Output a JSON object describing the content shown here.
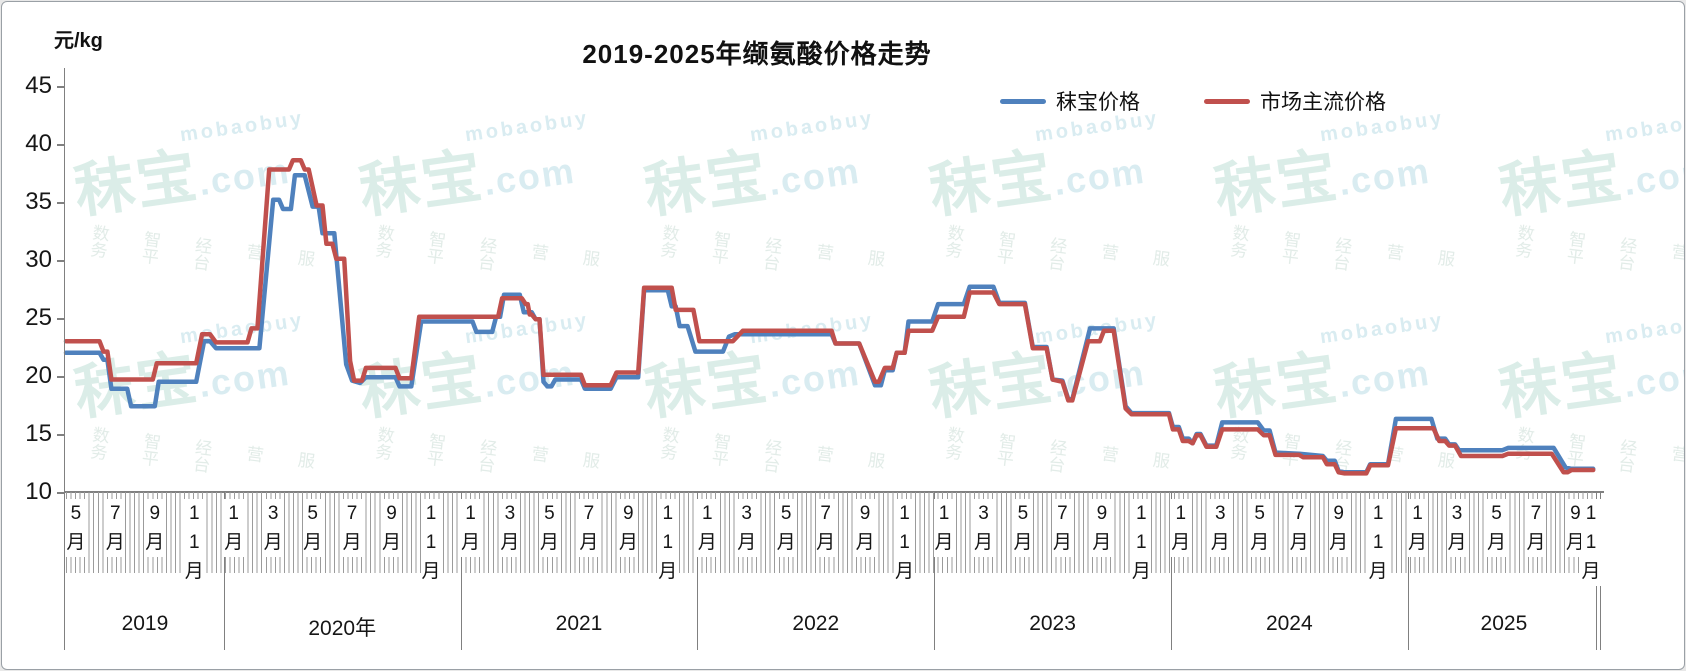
{
  "frame": {
    "title": "2019-2025年缬氨酸价格走势",
    "y_axis_title": "元/kg"
  },
  "legend": [
    {
      "label": "秣宝价格",
      "color": "#4F81BD"
    },
    {
      "label": "市场主流价格",
      "color": "#C0504D"
    }
  ],
  "watermark": {
    "latin": "mobaobuy",
    "brand": "秣宝",
    "domain": ".com",
    "slogan": "数智经营服务平台",
    "color": "#D5EBE4"
  },
  "chart_data": {
    "type": "line",
    "title": "2019-2025年缬氨酸价格走势",
    "ylabel": "元/kg",
    "ylim": [
      10,
      45
    ],
    "yticks": [
      45,
      40,
      35,
      30,
      25,
      20,
      15,
      10
    ],
    "grid": "off",
    "legend_position": "top-right",
    "x_unit": "months since 2019-05 (weekly step data)",
    "x_axis_years": [
      {
        "label": "2019",
        "start_month": 0,
        "months": [
          "5月",
          "7月",
          "9月",
          "11月"
        ]
      },
      {
        "label": "2020年",
        "start_month": 8,
        "months": [
          "1月",
          "3月",
          "5月",
          "7月",
          "9月",
          "11月"
        ]
      },
      {
        "label": "2021",
        "start_month": 20,
        "months": [
          "1月",
          "3月",
          "5月",
          "7月",
          "9月",
          "11月"
        ]
      },
      {
        "label": "2022",
        "start_month": 32,
        "months": [
          "1月",
          "3月",
          "5月",
          "7月",
          "9月",
          "11月"
        ]
      },
      {
        "label": "2023",
        "start_month": 44,
        "months": [
          "1月",
          "3月",
          "5月",
          "7月",
          "9月",
          "11月"
        ]
      },
      {
        "label": "2024",
        "start_month": 56,
        "months": [
          "1月",
          "3月",
          "5月",
          "7月",
          "9月",
          "11月"
        ]
      },
      {
        "label": "2025",
        "start_month": 68,
        "months": [
          "1月",
          "3月",
          "5月",
          "7月",
          "9月",
          "11月"
        ]
      }
    ],
    "series": [
      {
        "name": "秣宝价格",
        "color": "#4F81BD",
        "points": [
          [
            0,
            22
          ],
          [
            1.7,
            22
          ],
          [
            1.9,
            21.4
          ],
          [
            2.1,
            21.4
          ],
          [
            2.3,
            18.9
          ],
          [
            3.1,
            18.9
          ],
          [
            3.3,
            17.4
          ],
          [
            4.5,
            17.4
          ],
          [
            4.7,
            19.5
          ],
          [
            6.6,
            19.5
          ],
          [
            7,
            23
          ],
          [
            7.3,
            23
          ],
          [
            7.6,
            22.4
          ],
          [
            9.8,
            22.4
          ],
          [
            10.5,
            35.2
          ],
          [
            10.8,
            35.2
          ],
          [
            11,
            34.4
          ],
          [
            11.4,
            34.4
          ],
          [
            11.6,
            37.3
          ],
          [
            12.1,
            37.3
          ],
          [
            12.5,
            34.6
          ],
          [
            12.8,
            34.6
          ],
          [
            13,
            32.3
          ],
          [
            13.6,
            32.3
          ],
          [
            14.2,
            21
          ],
          [
            14.5,
            19.6
          ],
          [
            14.9,
            19.4
          ],
          [
            15.2,
            19.9
          ],
          [
            16.7,
            19.9
          ],
          [
            16.9,
            19.1
          ],
          [
            17.5,
            19.1
          ],
          [
            18,
            24.7
          ],
          [
            20.6,
            24.7
          ],
          [
            20.8,
            23.8
          ],
          [
            21.6,
            23.8
          ],
          [
            21.8,
            25.1
          ],
          [
            22,
            25.1
          ],
          [
            22.2,
            27
          ],
          [
            23,
            27
          ],
          [
            23.2,
            25.5
          ],
          [
            23.6,
            25.5
          ],
          [
            23.8,
            24.9
          ],
          [
            24,
            24.9
          ],
          [
            24.2,
            19.5
          ],
          [
            24.4,
            19.1
          ],
          [
            24.6,
            19.1
          ],
          [
            24.8,
            19.7
          ],
          [
            26.1,
            19.7
          ],
          [
            26.3,
            18.9
          ],
          [
            27.6,
            18.9
          ],
          [
            27.9,
            19.9
          ],
          [
            29,
            19.9
          ],
          [
            29.3,
            27.4
          ],
          [
            30.5,
            27.4
          ],
          [
            30.7,
            26
          ],
          [
            30.9,
            26
          ],
          [
            31.1,
            24.3
          ],
          [
            31.5,
            24.3
          ],
          [
            31.9,
            22.1
          ],
          [
            33.3,
            22.1
          ],
          [
            33.6,
            23.4
          ],
          [
            33.9,
            23.6
          ],
          [
            38.8,
            23.6
          ],
          [
            39,
            22.8
          ],
          [
            40.2,
            22.8
          ],
          [
            41,
            19.2
          ],
          [
            41.3,
            19.2
          ],
          [
            41.5,
            20.5
          ],
          [
            41.9,
            20.5
          ],
          [
            42.1,
            22
          ],
          [
            42.5,
            22
          ],
          [
            42.7,
            24.7
          ],
          [
            43.9,
            24.7
          ],
          [
            44.2,
            26.2
          ],
          [
            45.5,
            26.2
          ],
          [
            45.8,
            27.7
          ],
          [
            47,
            27.7
          ],
          [
            47.3,
            26.3
          ],
          [
            48.6,
            26.3
          ],
          [
            49,
            22.5
          ],
          [
            49.7,
            22.5
          ],
          [
            50,
            19.7
          ],
          [
            50.5,
            19.6
          ],
          [
            50.8,
            18
          ],
          [
            51,
            18
          ],
          [
            51.9,
            24.1
          ],
          [
            53.1,
            24.1
          ],
          [
            53.7,
            17.4
          ],
          [
            54,
            16.8
          ],
          [
            55.9,
            16.8
          ],
          [
            56.1,
            15.6
          ],
          [
            56.4,
            15.6
          ],
          [
            56.6,
            14.6
          ],
          [
            56.9,
            14.6
          ],
          [
            57.1,
            14.2
          ],
          [
            57.3,
            15
          ],
          [
            57.5,
            15
          ],
          [
            57.8,
            14
          ],
          [
            58.3,
            14
          ],
          [
            58.6,
            16
          ],
          [
            60.4,
            16
          ],
          [
            60.7,
            15.3
          ],
          [
            61,
            15.3
          ],
          [
            61.3,
            13.4
          ],
          [
            62.5,
            13.3
          ],
          [
            63.7,
            13.1
          ],
          [
            63.9,
            12.7
          ],
          [
            64.3,
            12.7
          ],
          [
            64.5,
            11.8
          ],
          [
            64.8,
            11.7
          ],
          [
            65.9,
            11.7
          ],
          [
            66.1,
            12.4
          ],
          [
            67,
            12.4
          ],
          [
            67.4,
            16.3
          ],
          [
            69.2,
            16.3
          ],
          [
            69.5,
            14.6
          ],
          [
            69.9,
            14.6
          ],
          [
            70.1,
            14.1
          ],
          [
            70.4,
            14.1
          ],
          [
            70.6,
            13.6
          ],
          [
            72.8,
            13.6
          ],
          [
            73.1,
            13.8
          ],
          [
            75.4,
            13.8
          ],
          [
            76,
            12.1
          ],
          [
            76.3,
            12
          ],
          [
            77.4,
            12
          ]
        ]
      },
      {
        "name": "市场主流价格",
        "color": "#C0504D",
        "points": [
          [
            0,
            23
          ],
          [
            1.7,
            23
          ],
          [
            1.9,
            22.1
          ],
          [
            2.1,
            22.1
          ],
          [
            2.3,
            19.7
          ],
          [
            4.4,
            19.7
          ],
          [
            4.6,
            21.1
          ],
          [
            6.6,
            21.1
          ],
          [
            6.9,
            23.6
          ],
          [
            7.3,
            23.6
          ],
          [
            7.6,
            22.9
          ],
          [
            9.2,
            22.9
          ],
          [
            9.4,
            24.1
          ],
          [
            9.7,
            24.1
          ],
          [
            10.3,
            37.8
          ],
          [
            11.3,
            37.8
          ],
          [
            11.5,
            38.6
          ],
          [
            11.9,
            38.6
          ],
          [
            12.1,
            37.8
          ],
          [
            12.3,
            37.8
          ],
          [
            12.7,
            34.7
          ],
          [
            13,
            34.7
          ],
          [
            13.2,
            31.4
          ],
          [
            13.5,
            31.4
          ],
          [
            13.7,
            30.1
          ],
          [
            14.1,
            30.1
          ],
          [
            14.4,
            21.3
          ],
          [
            14.6,
            19.6
          ],
          [
            15,
            19.6
          ],
          [
            15.2,
            20.7
          ],
          [
            16.7,
            20.7
          ],
          [
            16.9,
            19.8
          ],
          [
            17.5,
            19.8
          ],
          [
            17.9,
            25.1
          ],
          [
            21.9,
            25.1
          ],
          [
            22.1,
            26.7
          ],
          [
            23.1,
            26.7
          ],
          [
            23.3,
            26.2
          ],
          [
            23.4,
            26.2
          ],
          [
            23.5,
            25.3
          ],
          [
            23.6,
            25.3
          ],
          [
            23.8,
            24.9
          ],
          [
            24,
            24.9
          ],
          [
            24.2,
            20.1
          ],
          [
            26.1,
            20.1
          ],
          [
            26.3,
            19.2
          ],
          [
            27.6,
            19.2
          ],
          [
            27.9,
            20.3
          ],
          [
            29,
            20.3
          ],
          [
            29.3,
            27.6
          ],
          [
            30.7,
            27.6
          ],
          [
            30.9,
            25.7
          ],
          [
            31.8,
            25.7
          ],
          [
            32.1,
            23
          ],
          [
            33.8,
            23
          ],
          [
            34.3,
            23.9
          ],
          [
            38.8,
            23.9
          ],
          [
            39,
            22.8
          ],
          [
            40.2,
            22.8
          ],
          [
            41,
            19.5
          ],
          [
            41.2,
            19.5
          ],
          [
            41.5,
            20.7
          ],
          [
            41.9,
            20.7
          ],
          [
            42.1,
            22
          ],
          [
            42.5,
            22
          ],
          [
            42.7,
            23.9
          ],
          [
            43.9,
            23.9
          ],
          [
            44.2,
            25.1
          ],
          [
            45.5,
            25.1
          ],
          [
            45.8,
            27.2
          ],
          [
            47,
            27.2
          ],
          [
            47.3,
            26.2
          ],
          [
            48.6,
            26.2
          ],
          [
            49,
            22.4
          ],
          [
            49.7,
            22.4
          ],
          [
            50,
            19.7
          ],
          [
            50.5,
            19.5
          ],
          [
            50.8,
            17.9
          ],
          [
            51,
            17.9
          ],
          [
            51.8,
            23
          ],
          [
            52.4,
            23
          ],
          [
            52.6,
            23.9
          ],
          [
            53.1,
            23.9
          ],
          [
            53.7,
            17.2
          ],
          [
            54,
            16.7
          ],
          [
            55.9,
            16.7
          ],
          [
            56.1,
            15.4
          ],
          [
            56.4,
            15.4
          ],
          [
            56.6,
            14.4
          ],
          [
            56.9,
            14.4
          ],
          [
            57.1,
            14.2
          ],
          [
            57.3,
            14.9
          ],
          [
            57.5,
            14.9
          ],
          [
            57.8,
            13.9
          ],
          [
            58.3,
            13.9
          ],
          [
            58.6,
            15.4
          ],
          [
            60.4,
            15.4
          ],
          [
            60.7,
            14.9
          ],
          [
            61,
            14.9
          ],
          [
            61.3,
            13.2
          ],
          [
            62.5,
            13.2
          ],
          [
            62.7,
            13
          ],
          [
            63.7,
            13
          ],
          [
            63.9,
            12.4
          ],
          [
            64.3,
            12.4
          ],
          [
            64.5,
            11.7
          ],
          [
            64.8,
            11.6
          ],
          [
            65.9,
            11.6
          ],
          [
            66.1,
            12.3
          ],
          [
            67,
            12.3
          ],
          [
            67.4,
            15.5
          ],
          [
            69.3,
            15.5
          ],
          [
            69.6,
            14.4
          ],
          [
            69.9,
            14.4
          ],
          [
            70.1,
            14
          ],
          [
            70.4,
            14
          ],
          [
            70.7,
            13.1
          ],
          [
            72.8,
            13.1
          ],
          [
            73.1,
            13.3
          ],
          [
            75.3,
            13.3
          ],
          [
            75.9,
            11.7
          ],
          [
            76.1,
            11.7
          ],
          [
            76.3,
            11.9
          ],
          [
            77.4,
            11.9
          ]
        ]
      }
    ]
  }
}
